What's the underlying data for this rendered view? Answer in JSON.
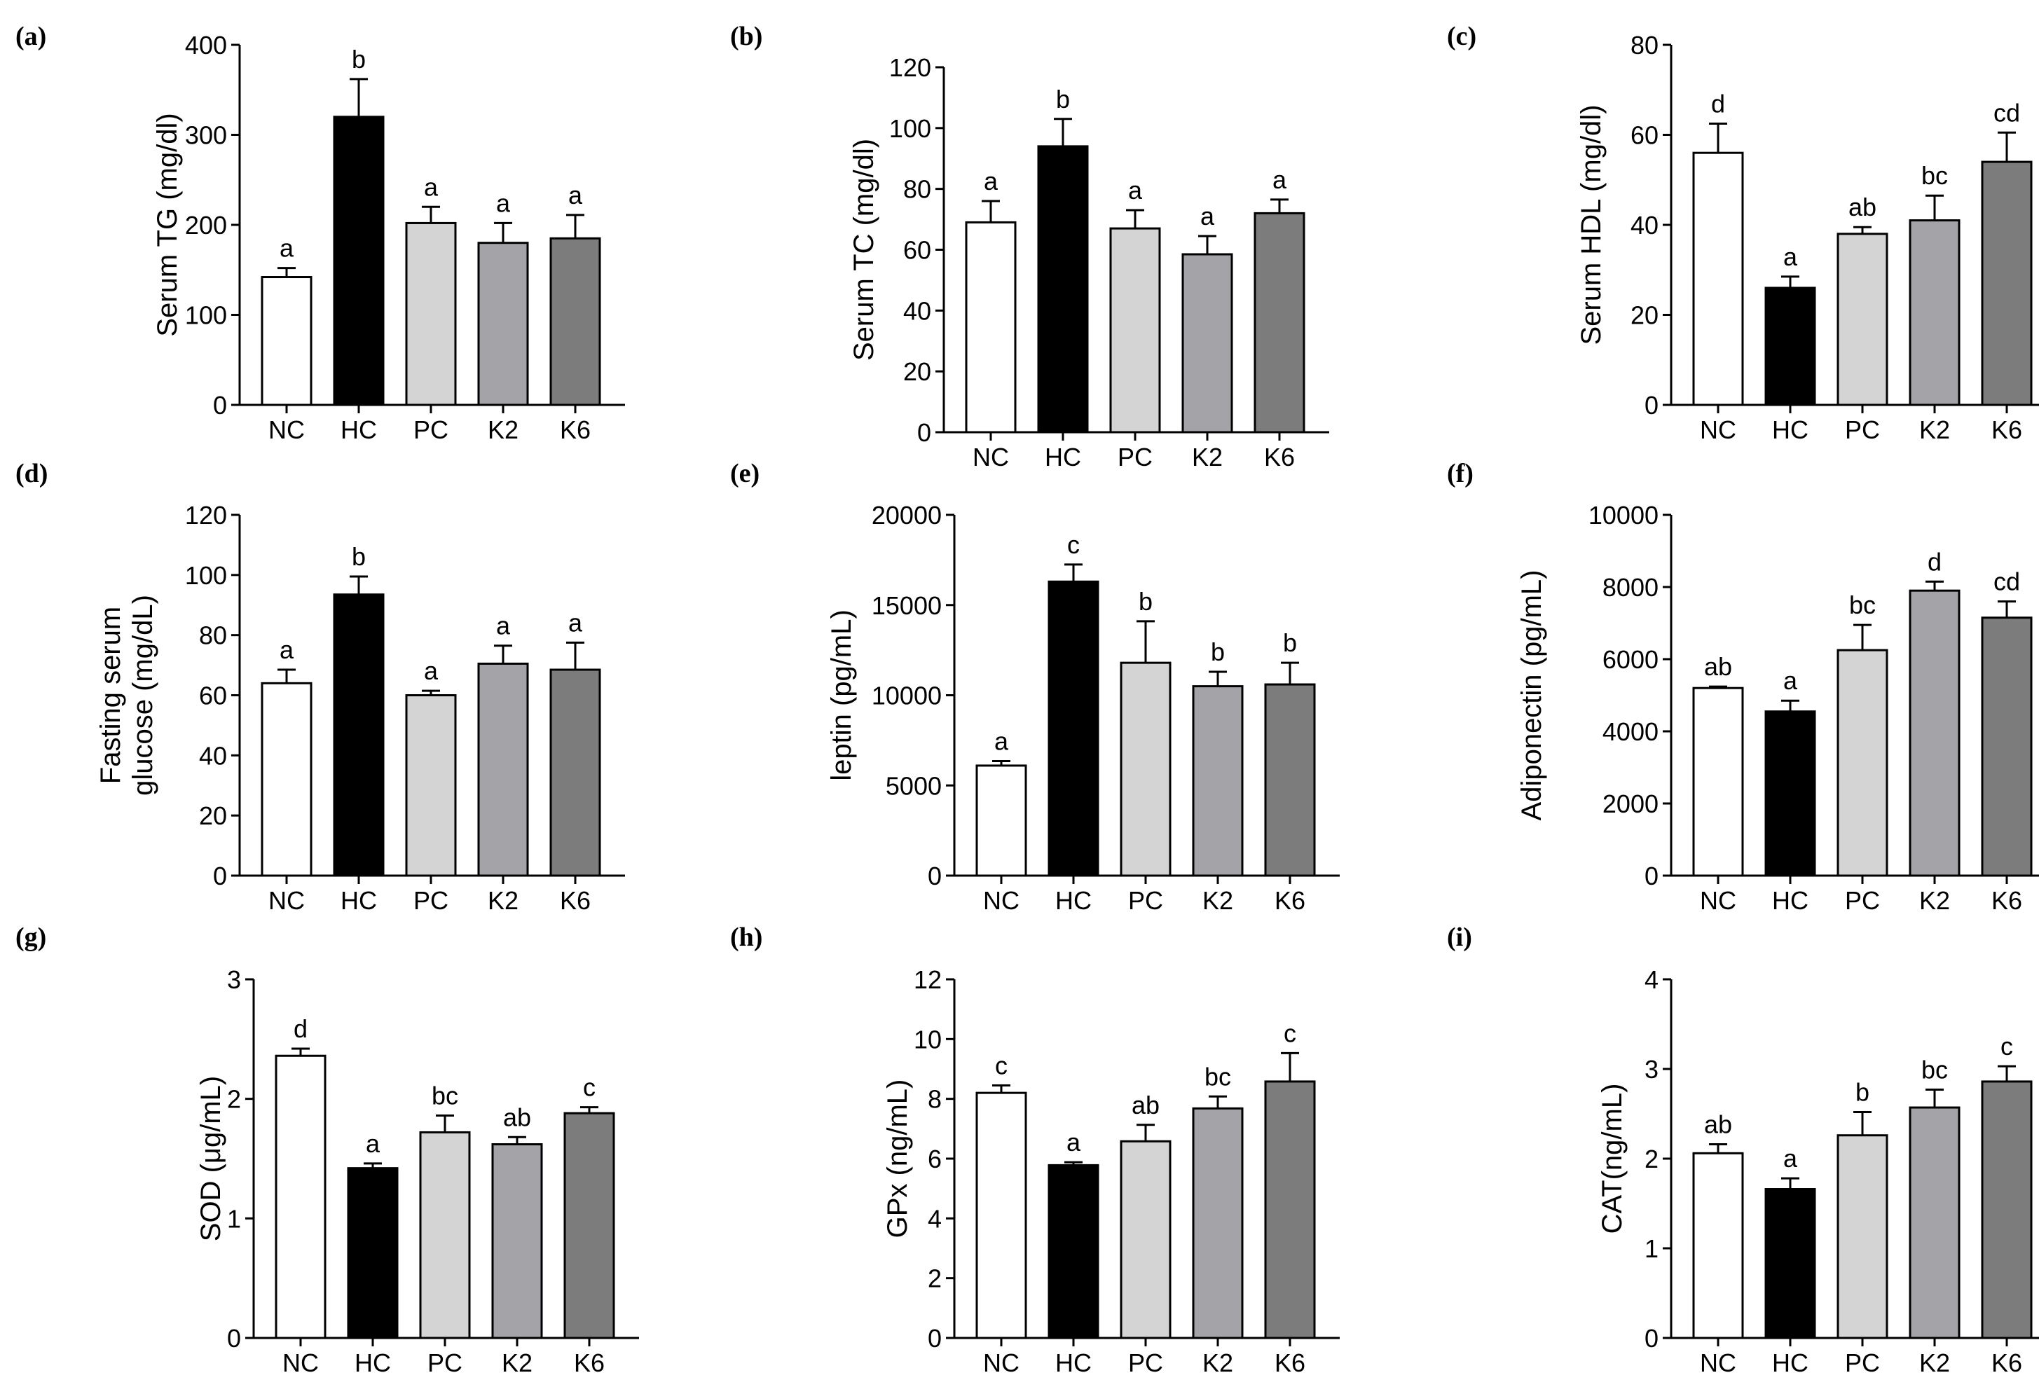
{
  "chart_data": [
    {
      "panel": "(a)",
      "type": "bar",
      "categories": [
        "NC",
        "HC",
        "PC",
        "K2",
        "K6"
      ],
      "values": [
        142,
        320,
        202,
        180,
        185
      ],
      "errors": [
        10,
        42,
        18,
        22,
        26
      ],
      "letters": [
        "a",
        "b",
        "a",
        "a",
        "a"
      ],
      "ylabel": "Serum TG (mg/dl)",
      "ylim": [
        0,
        400
      ],
      "yticks": [
        "0",
        "100",
        "200",
        "300",
        "400"
      ]
    },
    {
      "panel": "(b)",
      "type": "bar",
      "categories": [
        "NC",
        "HC",
        "PC",
        "K2",
        "K6"
      ],
      "values": [
        69,
        94,
        67,
        58.5,
        72
      ],
      "errors": [
        7,
        9,
        6,
        6,
        4.5
      ],
      "letters": [
        "a",
        "b",
        "a",
        "a",
        "a"
      ],
      "ylabel": "Serum TC (mg/dl)",
      "ylim": [
        0,
        120
      ],
      "yticks": [
        "0",
        "20",
        "40",
        "60",
        "80",
        "100",
        "120"
      ]
    },
    {
      "panel": "(c)",
      "type": "bar",
      "categories": [
        "NC",
        "HC",
        "PC",
        "K2",
        "K6"
      ],
      "values": [
        56,
        26,
        38,
        41,
        54
      ],
      "errors": [
        6.5,
        2.5,
        1.5,
        5.5,
        6.5
      ],
      "letters": [
        "d",
        "a",
        "ab",
        "bc",
        "cd"
      ],
      "ylabel": "Serum HDL (mg/dl)",
      "ylim": [
        0,
        80
      ],
      "yticks": [
        "0",
        "20",
        "40",
        "60",
        "80"
      ]
    },
    {
      "panel": "(d)",
      "type": "bar",
      "categories": [
        "NC",
        "HC",
        "PC",
        "K2",
        "K6"
      ],
      "values": [
        64,
        93.5,
        60,
        70.5,
        68.5
      ],
      "errors": [
        4.5,
        6,
        1.5,
        6,
        9
      ],
      "letters": [
        "a",
        "b",
        "a",
        "a",
        "a"
      ],
      "ylabel": [
        "Fasting serum",
        "glucose (mg/dL)"
      ],
      "ylim": [
        0,
        120
      ],
      "yticks": [
        "0",
        "20",
        "40",
        "60",
        "80",
        "100",
        "120"
      ]
    },
    {
      "panel": "(e)",
      "type": "bar",
      "categories": [
        "NC",
        "HC",
        "PC",
        "K2",
        "K6"
      ],
      "values": [
        6100,
        16300,
        11800,
        10500,
        10600
      ],
      "errors": [
        250,
        950,
        2300,
        800,
        1200
      ],
      "letters": [
        "a",
        "c",
        "b",
        "b",
        "b"
      ],
      "ylabel": "leptin (pg/mL)",
      "ylim": [
        0,
        20000
      ],
      "yticks": [
        "0",
        "5000",
        "10000",
        "15000",
        "20000"
      ]
    },
    {
      "panel": "(f)",
      "type": "bar",
      "categories": [
        "NC",
        "HC",
        "PC",
        "K2",
        "K6"
      ],
      "values": [
        5200,
        4550,
        6250,
        7900,
        7150
      ],
      "errors": [
        40,
        300,
        700,
        250,
        450
      ],
      "letters": [
        "ab",
        "a",
        "bc",
        "d",
        "cd"
      ],
      "ylabel": "Adiponectin (pg/mL)",
      "ylim": [
        0,
        10000
      ],
      "yticks": [
        "0",
        "2000",
        "4000",
        "6000",
        "8000",
        "10000"
      ]
    },
    {
      "panel": "(g)",
      "type": "bar",
      "categories": [
        "NC",
        "HC",
        "PC",
        "K2",
        "K6"
      ],
      "values": [
        2.36,
        1.42,
        1.72,
        1.62,
        1.88
      ],
      "errors": [
        0.06,
        0.04,
        0.14,
        0.06,
        0.05
      ],
      "letters": [
        "d",
        "a",
        "bc",
        "ab",
        "c"
      ],
      "ylabel": "SOD (μg/mL)",
      "ylim": [
        0,
        3
      ],
      "yticks": [
        "0",
        "1",
        "2",
        "3"
      ]
    },
    {
      "panel": "(h)",
      "type": "bar",
      "categories": [
        "NC",
        "HC",
        "PC",
        "K2",
        "K6"
      ],
      "values": [
        8.2,
        5.78,
        6.58,
        7.68,
        8.58
      ],
      "errors": [
        0.25,
        0.1,
        0.55,
        0.4,
        0.95
      ],
      "letters": [
        "c",
        "a",
        "ab",
        "bc",
        "c"
      ],
      "ylabel": "GPx (ng/mL)",
      "ylim": [
        0,
        12
      ],
      "yticks": [
        "0",
        "2",
        "4",
        "6",
        "8",
        "10",
        "12"
      ]
    },
    {
      "panel": "(i)",
      "type": "bar",
      "categories": [
        "NC",
        "HC",
        "PC",
        "K2",
        "K6"
      ],
      "values": [
        2.06,
        1.66,
        2.26,
        2.57,
        2.86
      ],
      "errors": [
        0.1,
        0.12,
        0.26,
        0.2,
        0.17
      ],
      "letters": [
        "ab",
        "a",
        "b",
        "bc",
        "c"
      ],
      "ylabel": "CAT(ng/mL)",
      "ylim": [
        0,
        4
      ],
      "yticks": [
        "0",
        "1",
        "2",
        "3",
        "4"
      ]
    }
  ],
  "colors": {
    "bar_fills": [
      "#ffffff",
      "#000000",
      "#d4d4d4",
      "#a3a3a8",
      "#7c7c7c"
    ],
    "outline": "#000000"
  }
}
